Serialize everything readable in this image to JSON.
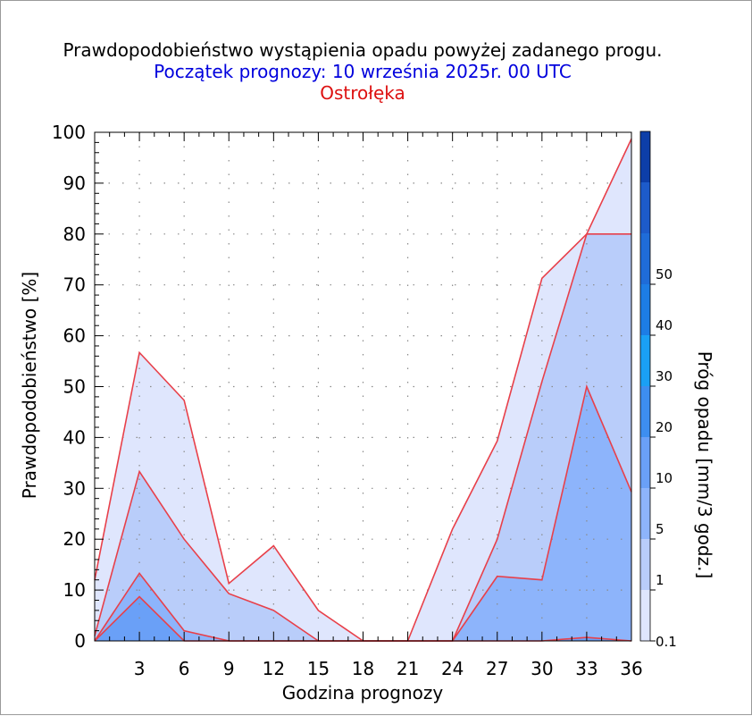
{
  "title": "Prawdopodobieństwo wystąpienia opadu powyżej zadanego progu.",
  "subtitle": "Początek prognozy: 10 września 2025r. 00 UTC",
  "location": "Ostrołęka",
  "colors": {
    "title": "#000000",
    "subtitle": "#0000dd",
    "location": "#dd1111",
    "line": "#e8404a"
  },
  "chart_data": {
    "type": "area",
    "xlabel": "Godzina prognozy",
    "ylabel": "Prawdopodobieństwo [%]",
    "x": [
      0,
      3,
      6,
      9,
      12,
      15,
      18,
      21,
      24,
      27,
      30,
      33,
      36
    ],
    "xticks": [
      3,
      6,
      9,
      12,
      15,
      18,
      21,
      24,
      27,
      30,
      33,
      36
    ],
    "xlim": [
      0,
      36
    ],
    "ylim": [
      0,
      100
    ],
    "yticks": [
      0,
      10,
      20,
      30,
      40,
      50,
      60,
      70,
      80,
      90,
      100
    ],
    "grid": true,
    "series": [
      {
        "threshold": 0.1,
        "color": "#dfe6fd",
        "values": [
          12,
          56.7,
          47.3,
          11.3,
          18.7,
          6,
          0,
          0,
          22,
          39.3,
          71.3,
          80,
          98.7
        ]
      },
      {
        "threshold": 1,
        "color": "#b9cdfa",
        "values": [
          1,
          33.3,
          20,
          9.3,
          6,
          0,
          0,
          0,
          0,
          20,
          51,
          80,
          80
        ]
      },
      {
        "threshold": 5,
        "color": "#8db4fb",
        "values": [
          0,
          13.3,
          2,
          0,
          0,
          0,
          0,
          0,
          0,
          12.7,
          12,
          50,
          29.3
        ]
      },
      {
        "threshold": 10,
        "color": "#6aa0f7",
        "values": [
          0,
          8.7,
          0,
          0,
          0,
          0,
          0,
          0,
          0,
          0,
          0,
          0.7,
          0
        ]
      }
    ],
    "colorbar": {
      "label": "Próg opadu [mm/3 godz.]",
      "tick_labels": [
        "0.1",
        "1",
        "5",
        "10",
        "20",
        "30",
        "40",
        "50"
      ],
      "colors": [
        "#dfe6fd",
        "#b9cdfa",
        "#8db4fb",
        "#6aa0f7",
        "#3d8ef0",
        "#1aa0f5",
        "#1d7de5",
        "#1f6cd8",
        "#1d5bca",
        "#0d3ea8"
      ]
    }
  }
}
